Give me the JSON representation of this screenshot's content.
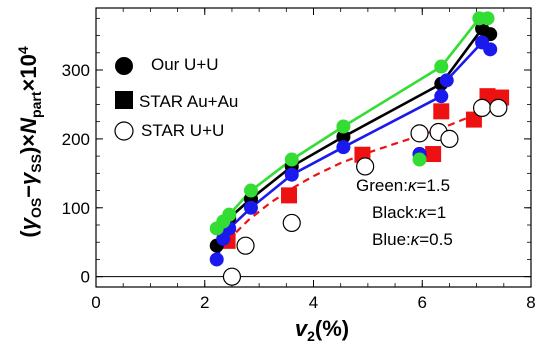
{
  "chart_data": {
    "type": "scatter",
    "title": "",
    "xlabel_parts": {
      "v": "v",
      "sub": "2",
      "tail": "(%)"
    },
    "ylabel_parts": {
      "open": "(",
      "g1": "γ",
      "s1": "OS",
      "minus": "−",
      "g2": "γ",
      "s2": "SS",
      "close": ")×",
      "n": "N",
      "s3": "part",
      "times": "×10",
      "sup": "4"
    },
    "xlim": [
      0,
      8
    ],
    "ylim": [
      -15,
      390
    ],
    "xticks": [
      "0",
      "2",
      "4",
      "6",
      "8"
    ],
    "yticks": [
      "0",
      "100",
      "200",
      "300"
    ],
    "grid": false,
    "zero_line": true,
    "legend": {
      "placement": "top-left",
      "entries": [
        {
          "label": "Our U+U",
          "marker": "filled-circle"
        },
        {
          "label": "STAR Au+Au",
          "marker": "filled-square"
        },
        {
          "label": "STAR U+U",
          "marker": "open-circle"
        }
      ]
    },
    "annotations": [
      {
        "prefix": "Green:",
        "kappa": "κ",
        "suffix": "=1.5",
        "color": "#33dd33"
      },
      {
        "prefix": "Black:",
        "kappa": "κ",
        "suffix": "=1",
        "color": "#000000"
      },
      {
        "prefix": "Blue:",
        "kappa": "κ",
        "suffix": "=0.5",
        "color": "#1a1aee"
      }
    ],
    "series": [
      {
        "color": "#33dd33",
        "marker": "filled-circle",
        "connected": true,
        "points": [
          [
            2.22,
            70
          ],
          [
            2.34,
            80
          ],
          [
            2.45,
            90
          ],
          [
            2.85,
            125
          ],
          [
            3.6,
            170
          ],
          [
            4.55,
            218
          ],
          [
            6.35,
            305
          ],
          [
            7.05,
            375
          ]
        ],
        "points_extra": [
          [
            5.95,
            170
          ],
          [
            7.2,
            375
          ]
        ]
      },
      {
        "color": "#000000",
        "marker": "filled-circle",
        "connected": true,
        "points": [
          [
            2.22,
            45
          ],
          [
            2.34,
            75
          ],
          [
            2.45,
            85
          ],
          [
            2.85,
            113
          ],
          [
            3.6,
            160
          ],
          [
            4.55,
            203
          ],
          [
            6.35,
            280
          ],
          [
            7.1,
            360
          ]
        ],
        "points_extra": [
          [
            5.95,
            178
          ],
          [
            7.25,
            352
          ]
        ]
      },
      {
        "color": "#1a1aee",
        "marker": "filled-circle",
        "connected": true,
        "points": [
          [
            2.22,
            25
          ],
          [
            2.34,
            55
          ],
          [
            2.45,
            70
          ],
          [
            2.85,
            100
          ],
          [
            3.6,
            148
          ],
          [
            4.55,
            188
          ],
          [
            6.35,
            262
          ],
          [
            6.45,
            285
          ],
          [
            7.1,
            340
          ]
        ],
        "points_extra": [
          [
            5.95,
            178
          ],
          [
            7.25,
            330
          ]
        ]
      },
      {
        "color": "#ee1111",
        "marker": "filled-square",
        "connected": false,
        "points": [
          [
            2.42,
            52
          ],
          [
            3.55,
            118
          ],
          [
            4.9,
            177
          ],
          [
            6.2,
            178
          ],
          [
            6.35,
            240
          ],
          [
            6.95,
            228
          ],
          [
            7.2,
            262
          ],
          [
            7.45,
            260
          ]
        ]
      },
      {
        "color": "#000000",
        "marker": "open-circle",
        "connected": false,
        "points": [
          [
            2.5,
            0
          ],
          [
            2.75,
            45
          ],
          [
            3.6,
            78
          ],
          [
            4.95,
            160
          ],
          [
            5.95,
            208
          ],
          [
            6.3,
            210
          ],
          [
            6.5,
            200
          ],
          [
            7.1,
            245
          ],
          [
            7.4,
            245
          ]
        ]
      }
    ],
    "fit_curve": {
      "color": "#ee1111",
      "style": "dashed",
      "points": [
        [
          2.42,
          52
        ],
        [
          2.8,
          82
        ],
        [
          3.2,
          107
        ],
        [
          3.6,
          128
        ],
        [
          4.0,
          146
        ],
        [
          4.5,
          165
        ],
        [
          5.0,
          180
        ],
        [
          5.5,
          193
        ],
        [
          6.0,
          206
        ],
        [
          6.5,
          220
        ],
        [
          7.0,
          236
        ],
        [
          7.45,
          252
        ]
      ]
    }
  }
}
